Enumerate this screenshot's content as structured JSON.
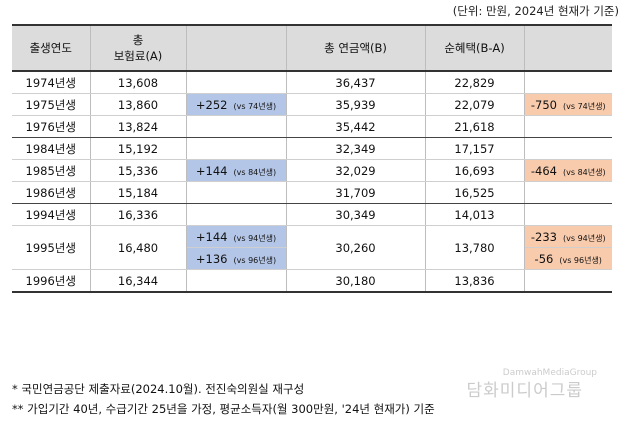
{
  "unit_note": "(단위: 만원, 2024년 현재가 기준)",
  "headers": {
    "birth_year": "출생연도",
    "premium_line1": "총",
    "premium_line2": "보험료(A)",
    "pension": "총 연금액(B)",
    "net_benefit": "순혜택(B-A)"
  },
  "rows": [
    {
      "year": "1974년생",
      "premium": "13,608",
      "pension": "36,437",
      "net": "22,829"
    },
    {
      "year": "1975년생",
      "premium": "13,860",
      "premium_diff": "+252",
      "premium_diff_vs": "(vs 74년생)",
      "pension": "35,939",
      "net": "22,079",
      "net_diff": "-750",
      "net_diff_vs": "(vs 74년생)"
    },
    {
      "year": "1976년생",
      "premium": "13,824",
      "pension": "35,442",
      "net": "21,618"
    },
    {
      "year": "1984년생",
      "premium": "15,192",
      "pension": "32,349",
      "net": "17,157"
    },
    {
      "year": "1985년생",
      "premium": "15,336",
      "premium_diff": "+144",
      "premium_diff_vs": "(vs 84년생)",
      "pension": "32,029",
      "net": "16,693",
      "net_diff": "-464",
      "net_diff_vs": "(vs 84년생)"
    },
    {
      "year": "1986년생",
      "premium": "15,184",
      "pension": "31,709",
      "net": "16,525"
    },
    {
      "year": "1994년생",
      "premium": "16,336",
      "pension": "30,349",
      "net": "14,013"
    },
    {
      "year": "1995년생",
      "premium": "16,480",
      "premium_diff_a": "+144",
      "premium_diff_a_vs": "(vs 94년생)",
      "premium_diff_b": "+136",
      "premium_diff_b_vs": "(vs 96년생)",
      "pension": "30,260",
      "net": "13,780",
      "net_diff_a": "-233",
      "net_diff_a_vs": "(vs 94년생)",
      "net_diff_b": "-56",
      "net_diff_b_vs": "(vs 96년생)"
    },
    {
      "year": "1996년생",
      "premium": "16,344",
      "pension": "30,180",
      "net": "13,836"
    }
  ],
  "notes": [
    "* 국민연금공단 제출자료(2024.10월). 전진숙의원실 재구성",
    "** 가입기간 40년, 수급기간 25년을 가정, 평균소득자(월 300만원, '24년 현재가) 기준"
  ],
  "watermark": "담화미디어그룹",
  "watermark_en": "DamwahMediaGroup"
}
